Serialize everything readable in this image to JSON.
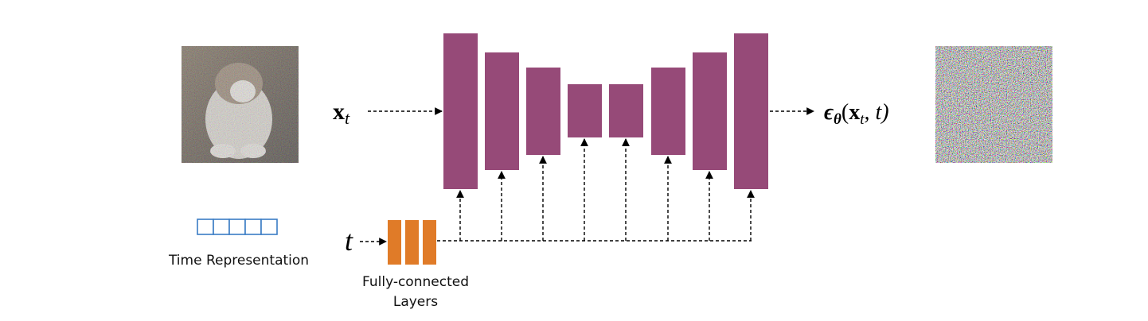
{
  "input_label": {
    "symbol": "x",
    "subscript": "t"
  },
  "output_label": [
    "ϵ",
    "θ",
    "(",
    "x",
    "t",
    ", t)"
  ],
  "time_symbol": "t",
  "time_representation": "Time Representation",
  "fc_layers": [
    "Fully-connected",
    "Layers"
  ]
}
